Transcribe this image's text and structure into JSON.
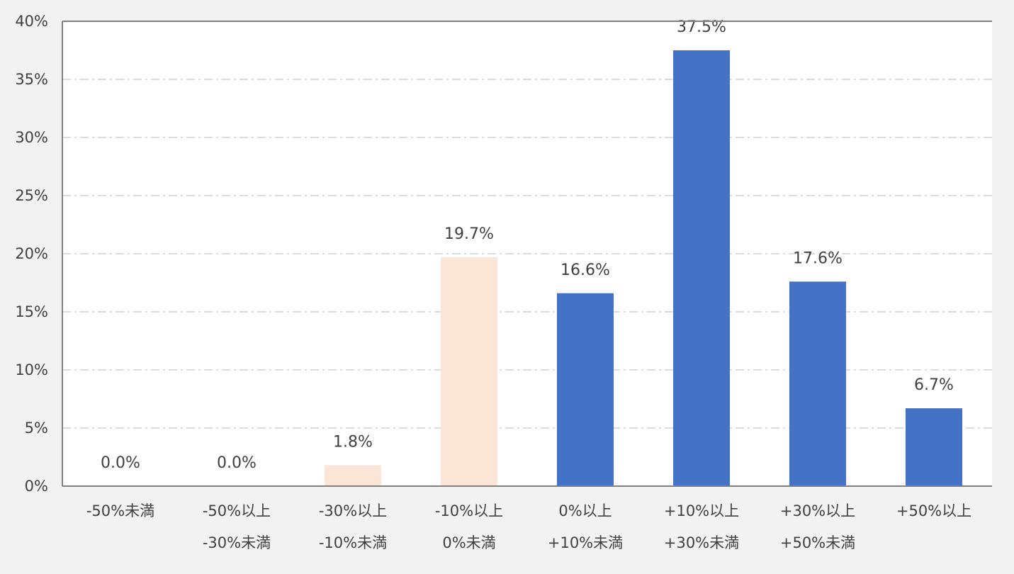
{
  "chart_data": {
    "type": "bar",
    "title": "",
    "xlabel": "",
    "ylabel": "",
    "categories": [
      [
        "-50%未満"
      ],
      [
        "-50%以上",
        "-30%未満"
      ],
      [
        "-30%以上",
        "-10%未満"
      ],
      [
        "-10%以上",
        "0%未満"
      ],
      [
        "0%以上",
        "+10%未満"
      ],
      [
        "+10%以上",
        "+30%未満"
      ],
      [
        "+30%以上",
        "+50%未満"
      ],
      [
        "+50%以上"
      ]
    ],
    "values": [
      0.0,
      0.0,
      1.8,
      19.7,
      16.6,
      37.5,
      17.6,
      6.7
    ],
    "data_labels": [
      "0.0%",
      "0.0%",
      "1.8%",
      "19.7%",
      "16.6%",
      "37.5%",
      "17.6%",
      "6.7%"
    ],
    "y_ticks": [
      "0%",
      "5%",
      "10%",
      "15%",
      "20%",
      "25%",
      "30%",
      "35%",
      "40%"
    ],
    "ylim": [
      0,
      40
    ],
    "grid": true,
    "legend": false,
    "colors": {
      "negative": "#fbe5d6",
      "positive": "#4472c4",
      "grid": "#d0d0d0",
      "axis": "#808080",
      "plot_background": "#ffffff",
      "page_background": "#f2f2f2",
      "text": "#404040"
    }
  }
}
